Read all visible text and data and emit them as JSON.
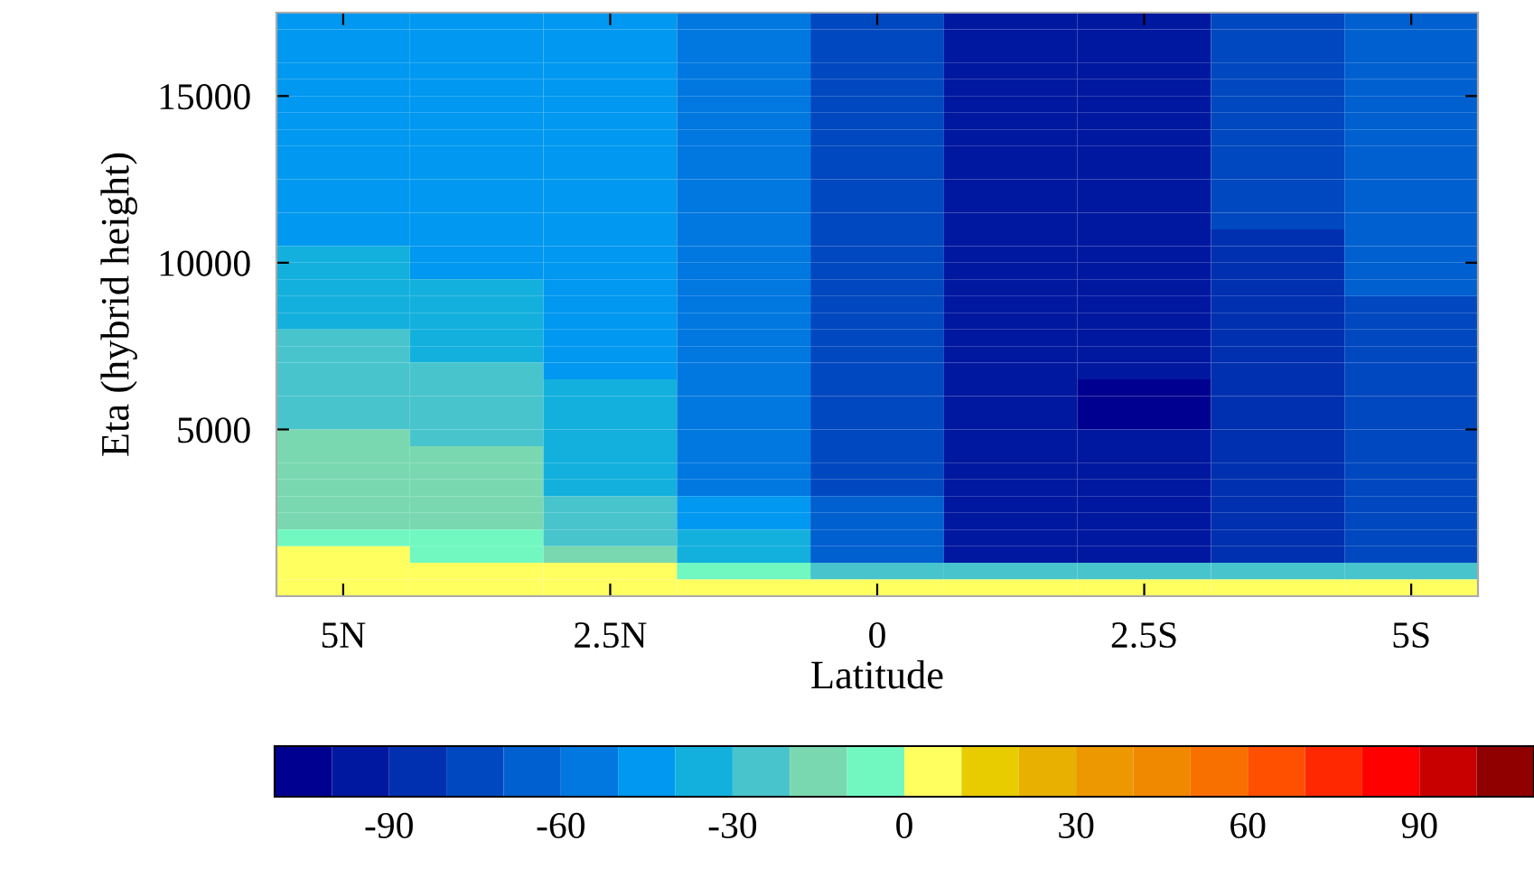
{
  "chart_data": {
    "type": "heatmap",
    "xlabel": "Latitude",
    "ylabel": "Eta (hybrid height)",
    "categories": [
      "5N",
      null,
      "2.5N",
      null,
      "0",
      null,
      "2.5S",
      null,
      "5S"
    ],
    "ylim": [
      0,
      17500
    ],
    "yticks": [
      5000,
      10000,
      15000
    ],
    "clim": [
      -110,
      110
    ],
    "cticks": [
      -90,
      -60,
      -30,
      0,
      30,
      60,
      90
    ],
    "colors": [
      "#000090",
      "#0018a0",
      "#0030b0",
      "#0048c0",
      "#0060d0",
      "#0078e0",
      "#0098f0",
      "#13b0dd",
      "#48c4cc",
      "#7ad8b0",
      "#70f8c0",
      "#ffff60",
      "#e8cc00",
      "#e8b000",
      "#ee9800",
      "#f08800",
      "#f87000",
      "#ff5000",
      "#ff2800",
      "#ff0000",
      "#c80000",
      "#900000"
    ],
    "cells": [
      [
        -45,
        -45,
        -45,
        -55,
        -75,
        -95,
        -95,
        -75,
        -65
      ],
      [
        -45,
        -45,
        -45,
        -55,
        -75,
        -95,
        -95,
        -75,
        -65
      ],
      [
        -45,
        -45,
        -45,
        -55,
        -75,
        -95,
        -95,
        -75,
        -65
      ],
      [
        -45,
        -45,
        -45,
        -55,
        -75,
        -95,
        -95,
        -75,
        -65
      ],
      [
        -45,
        -45,
        -45,
        -55,
        -75,
        -95,
        -95,
        -75,
        -65
      ],
      [
        -45,
        -45,
        -45,
        -55,
        -75,
        -95,
        -95,
        -75,
        -65
      ],
      [
        -45,
        -45,
        -45,
        -55,
        -75,
        -95,
        -95,
        -75,
        -65
      ],
      [
        -45,
        -45,
        -45,
        -55,
        -75,
        -95,
        -95,
        -75,
        -65
      ],
      [
        -45,
        -45,
        -45,
        -55,
        -75,
        -95,
        -95,
        -75,
        -65
      ],
      [
        -45,
        -45,
        -45,
        -55,
        -75,
        -95,
        -95,
        -75,
        -65
      ],
      [
        -45,
        -45,
        -45,
        -55,
        -75,
        -95,
        -95,
        -75,
        -65
      ],
      [
        -45,
        -45,
        -45,
        -55,
        -75,
        -95,
        -95,
        -75,
        -65
      ],
      [
        -45,
        -45,
        -45,
        -55,
        -75,
        -95,
        -95,
        -75,
        -65
      ],
      [
        -45,
        -45,
        -45,
        -55,
        -75,
        -95,
        -95,
        -85,
        -65
      ],
      [
        -35,
        -45,
        -45,
        -55,
        -75,
        -95,
        -95,
        -85,
        -65
      ],
      [
        -35,
        -45,
        -45,
        -55,
        -75,
        -95,
        -95,
        -85,
        -65
      ],
      [
        -35,
        -35,
        -45,
        -55,
        -75,
        -95,
        -95,
        -85,
        -65
      ],
      [
        -35,
        -35,
        -45,
        -55,
        -75,
        -95,
        -95,
        -85,
        -75
      ],
      [
        -35,
        -35,
        -45,
        -55,
        -75,
        -95,
        -95,
        -85,
        -75
      ],
      [
        -25,
        -35,
        -45,
        -55,
        -75,
        -95,
        -95,
        -85,
        -75
      ],
      [
        -25,
        -35,
        -45,
        -55,
        -75,
        -95,
        -95,
        -85,
        -75
      ],
      [
        -25,
        -25,
        -45,
        -55,
        -75,
        -95,
        -95,
        -85,
        -75
      ],
      [
        -25,
        -25,
        -35,
        -55,
        -75,
        -95,
        -105,
        -85,
        -75
      ],
      [
        -25,
        -25,
        -35,
        -55,
        -75,
        -95,
        -105,
        -85,
        -75
      ],
      [
        -25,
        -25,
        -35,
        -55,
        -75,
        -95,
        -105,
        -85,
        -75
      ],
      [
        -15,
        -25,
        -35,
        -55,
        -75,
        -95,
        -95,
        -85,
        -75
      ],
      [
        -15,
        -15,
        -35,
        -55,
        -75,
        -95,
        -95,
        -85,
        -75
      ],
      [
        -15,
        -15,
        -35,
        -55,
        -75,
        -95,
        -95,
        -85,
        -75
      ],
      [
        -15,
        -15,
        -35,
        -55,
        -75,
        -95,
        -95,
        -85,
        -75
      ],
      [
        -15,
        -15,
        -25,
        -45,
        -65,
        -95,
        -95,
        -85,
        -75
      ],
      [
        -15,
        -15,
        -25,
        -45,
        -65,
        -95,
        -95,
        -85,
        -75
      ],
      [
        -5,
        -5,
        -25,
        -35,
        -65,
        -95,
        -95,
        -85,
        -75
      ],
      [
        5,
        -5,
        -15,
        -35,
        -65,
        -95,
        -95,
        -85,
        -75
      ],
      [
        5,
        5,
        5,
        -5,
        -25,
        -25,
        -25,
        -25,
        -25
      ],
      [
        5,
        5,
        5,
        5,
        5,
        5,
        5,
        5,
        5
      ]
    ]
  }
}
